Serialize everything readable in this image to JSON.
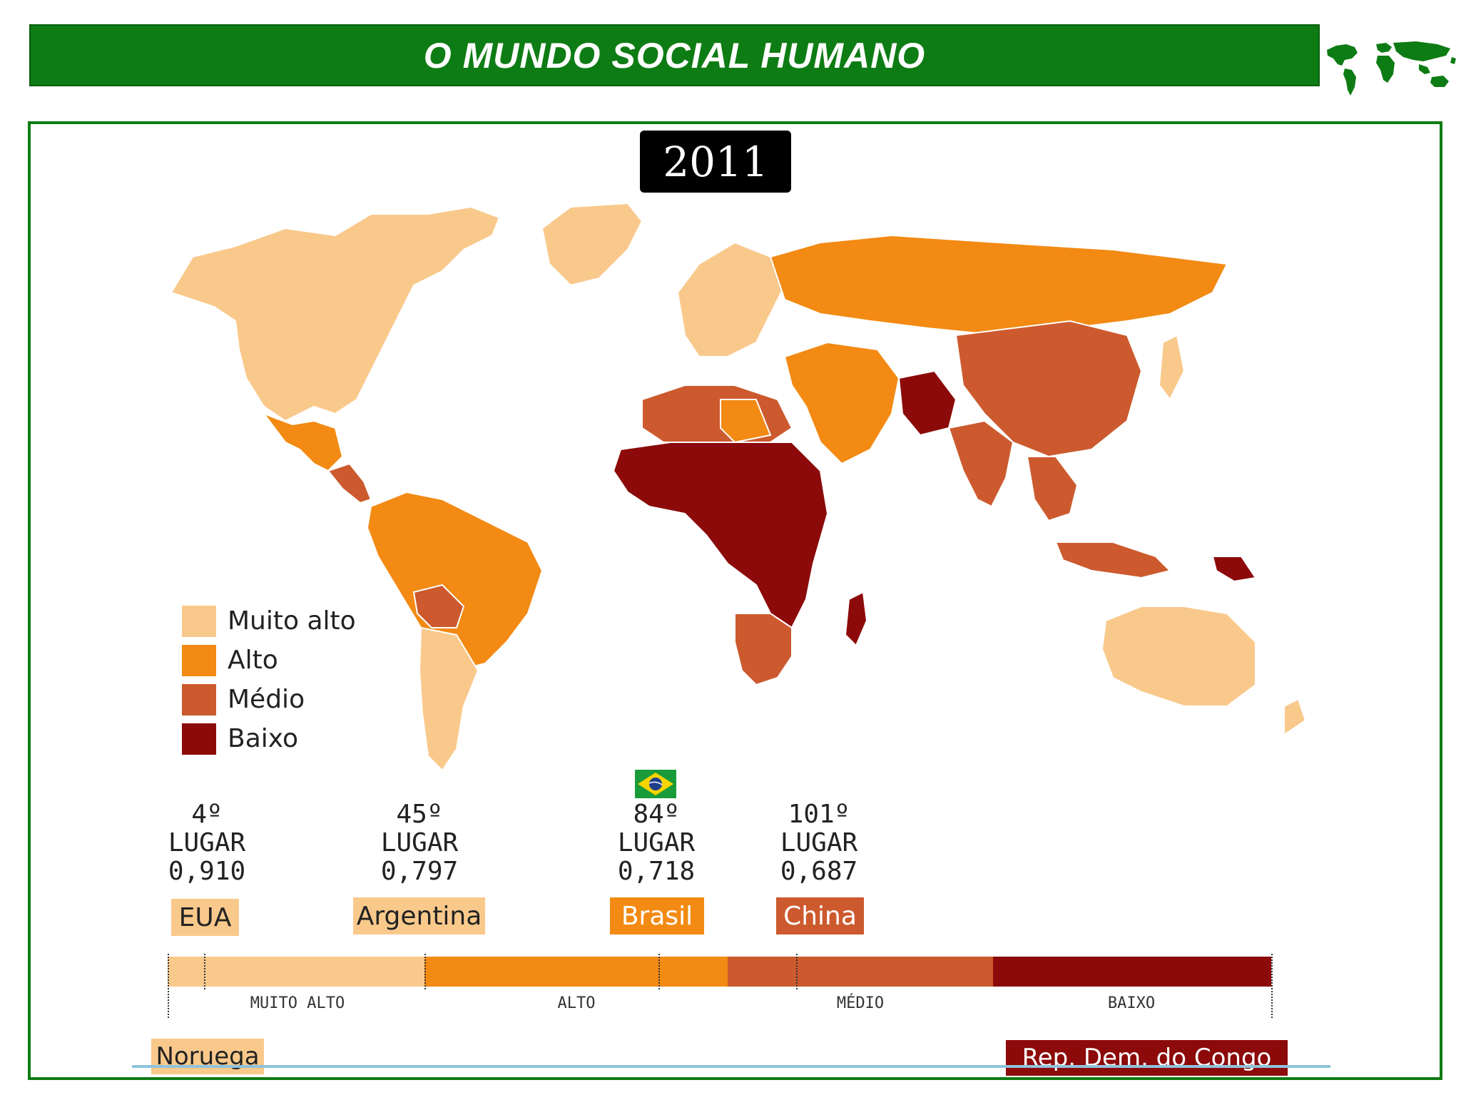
{
  "header": {
    "title": "O MUNDO SOCIAL HUMANO"
  },
  "map": {
    "year": "2011",
    "legend": [
      {
        "label": "Muito alto",
        "color": "#f9c98c"
      },
      {
        "label": "Alto",
        "color": "#f28a13"
      },
      {
        "label": "Médio",
        "color": "#cc5a2e"
      },
      {
        "label": "Baixo",
        "color": "#8c0a0a"
      }
    ]
  },
  "ranking": [
    {
      "rank": "4º",
      "word": "LUGAR",
      "value": "0,910",
      "country": "EUA"
    },
    {
      "rank": "45º",
      "word": "LUGAR",
      "value": "0,797",
      "country": "Argentina"
    },
    {
      "rank": "84º",
      "word": "LUGAR",
      "value": "0,718",
      "country": "Brasil"
    },
    {
      "rank": "101º",
      "word": "LUGAR",
      "value": "0,687",
      "country": "China"
    }
  ],
  "scale": {
    "categories": [
      "MUITO ALTO",
      "ALTO",
      "MÉDIO",
      "BAIXO"
    ],
    "first": "Noruega",
    "last": "Rep. Dem. do Congo"
  },
  "flag": {
    "label": "brazil-flag-icon"
  }
}
